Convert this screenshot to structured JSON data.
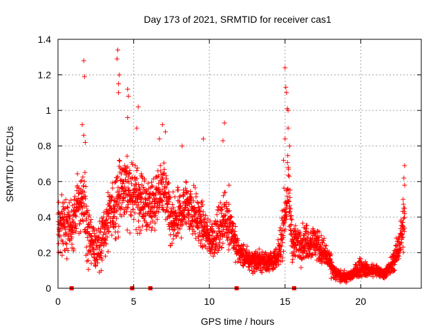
{
  "chart_data": {
    "type": "scatter",
    "title": "Day 173 of 2021, SRMTID for receiver cas1",
    "xlabel": "GPS time / hours",
    "ylabel": "SRMTID / TECUs",
    "xlim": [
      0,
      24
    ],
    "ylim": [
      0,
      1.4
    ],
    "x_ticks": [
      0,
      5,
      10,
      15,
      20
    ],
    "x_tick_labels": [
      "0",
      "5",
      "10",
      "15",
      "20"
    ],
    "y_ticks": [
      0,
      0.2,
      0.4,
      0.6,
      0.8,
      1.0,
      1.2,
      1.4
    ],
    "y_tick_labels": [
      "0",
      "0.2",
      "0.4",
      "0.6",
      "0.8",
      "1",
      "1.2",
      "1.4"
    ],
    "grid": true,
    "marker": "plus",
    "color": "#ff0000",
    "baseline_markers": {
      "marker": "square",
      "x": [
        0.9,
        4.9,
        6.1,
        11.8,
        15.6
      ],
      "y": 0
    },
    "series": [
      {
        "name": "SRMTID",
        "profile": [
          [
            0.0,
            0.33,
            0.12
          ],
          [
            0.5,
            0.38,
            0.13
          ],
          [
            1.0,
            0.33,
            0.14
          ],
          [
            1.3,
            0.48,
            0.12
          ],
          [
            1.7,
            0.5,
            0.14
          ],
          [
            2.0,
            0.28,
            0.14
          ],
          [
            2.5,
            0.22,
            0.12
          ],
          [
            3.0,
            0.3,
            0.14
          ],
          [
            3.5,
            0.42,
            0.14
          ],
          [
            4.0,
            0.52,
            0.16
          ],
          [
            4.5,
            0.58,
            0.14
          ],
          [
            5.0,
            0.52,
            0.14
          ],
          [
            5.5,
            0.5,
            0.13
          ],
          [
            6.0,
            0.45,
            0.12
          ],
          [
            6.5,
            0.5,
            0.12
          ],
          [
            7.0,
            0.56,
            0.12
          ],
          [
            7.5,
            0.35,
            0.12
          ],
          [
            8.0,
            0.4,
            0.12
          ],
          [
            8.5,
            0.48,
            0.12
          ],
          [
            9.0,
            0.42,
            0.12
          ],
          [
            9.5,
            0.35,
            0.1
          ],
          [
            10.0,
            0.28,
            0.08
          ],
          [
            10.5,
            0.3,
            0.1
          ],
          [
            11.0,
            0.4,
            0.12
          ],
          [
            11.5,
            0.34,
            0.1
          ],
          [
            11.8,
            0.22,
            0.06
          ],
          [
            12.5,
            0.16,
            0.05
          ],
          [
            13.5,
            0.15,
            0.05
          ],
          [
            14.5,
            0.16,
            0.05
          ],
          [
            14.8,
            0.3,
            0.1
          ],
          [
            15.2,
            0.55,
            0.14
          ],
          [
            15.5,
            0.25,
            0.08
          ],
          [
            16.0,
            0.26,
            0.08
          ],
          [
            17.0,
            0.26,
            0.08
          ],
          [
            17.8,
            0.17,
            0.06
          ],
          [
            18.3,
            0.08,
            0.03
          ],
          [
            19.0,
            0.06,
            0.02
          ],
          [
            19.5,
            0.08,
            0.03
          ],
          [
            20.0,
            0.12,
            0.04
          ],
          [
            20.5,
            0.1,
            0.03
          ],
          [
            21.0,
            0.1,
            0.03
          ],
          [
            21.5,
            0.08,
            0.02
          ],
          [
            22.0,
            0.12,
            0.04
          ],
          [
            22.4,
            0.2,
            0.06
          ],
          [
            22.9,
            0.38,
            0.12
          ]
        ],
        "outliers": [
          [
            1.7,
            1.28
          ],
          [
            1.75,
            1.19
          ],
          [
            1.6,
            0.92
          ],
          [
            1.7,
            0.86
          ],
          [
            1.8,
            0.82
          ],
          [
            3.95,
            1.34
          ],
          [
            3.9,
            1.29
          ],
          [
            4.05,
            1.2
          ],
          [
            4.0,
            1.15
          ],
          [
            4.0,
            1.1
          ],
          [
            4.6,
            1.12
          ],
          [
            4.65,
            1.08
          ],
          [
            4.6,
            0.96
          ],
          [
            5.3,
            1.02
          ],
          [
            5.2,
            0.9
          ],
          [
            6.9,
            0.92
          ],
          [
            7.1,
            0.88
          ],
          [
            6.7,
            0.84
          ],
          [
            9.6,
            0.84
          ],
          [
            8.2,
            0.8
          ],
          [
            11.0,
            0.93
          ],
          [
            10.9,
            0.83
          ],
          [
            11.3,
            0.58
          ],
          [
            15.0,
            1.24
          ],
          [
            15.05,
            1.13
          ],
          [
            15.1,
            1.1
          ],
          [
            15.15,
            1.01
          ],
          [
            15.2,
            1.0
          ],
          [
            15.2,
            0.9
          ],
          [
            15.3,
            0.8
          ],
          [
            15.0,
            0.84
          ],
          [
            14.9,
            0.72
          ],
          [
            22.9,
            0.69
          ],
          [
            22.85,
            0.62
          ],
          [
            22.9,
            0.58
          ],
          [
            22.8,
            0.5
          ],
          [
            22.9,
            0.45
          ]
        ]
      }
    ]
  }
}
